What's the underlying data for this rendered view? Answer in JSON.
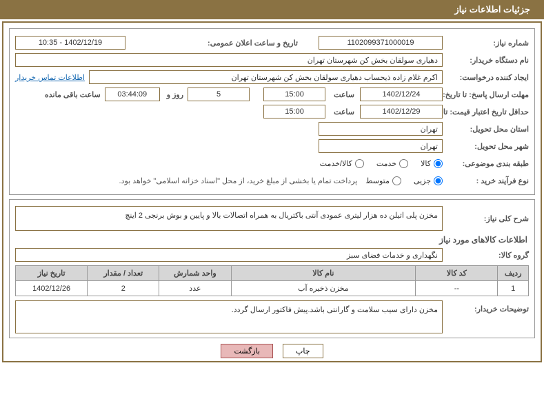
{
  "header": {
    "title": "جزئیات اطلاعات نیاز"
  },
  "form": {
    "need_no_label": "شماره نیاز:",
    "need_no": "1102099371000019",
    "announce_label": "تاریخ و ساعت اعلان عمومی:",
    "announce_value": "1402/12/19 - 10:35",
    "buyer_org_label": "نام دستگاه خریدار:",
    "buyer_org": "دهیاری سولقان بخش کن شهرستان تهران",
    "requester_label": "ایجاد کننده درخواست:",
    "requester": "اکرم غلام زاده ذیحساب دهیاری سولقان بخش کن شهرستان تهران",
    "buyer_contact_link": "اطلاعات تماس خریدار",
    "reply_deadline_label": "مهلت ارسال پاسخ: تا تاریخ:",
    "reply_date": "1402/12/24",
    "time_label": "ساعت",
    "reply_time": "15:00",
    "days_remain": "5",
    "days_word": "روز و",
    "hours_remain": "03:44:09",
    "remain_suffix": "ساعت باقی مانده",
    "min_valid_label": "حداقل تاریخ اعتبار قیمت: تا تاریخ:",
    "min_valid_date": "1402/12/29",
    "min_valid_time": "15:00",
    "deliv_prov_label": "استان محل تحویل:",
    "deliv_prov": "تهران",
    "deliv_city_label": "شهر محل تحویل:",
    "deliv_city": "تهران",
    "subject_class_label": "طبقه بندی موضوعی:",
    "subject_opts": {
      "goods": "کالا",
      "service": "خدمت",
      "both": "کالا/خدمت"
    },
    "process_label": "نوع فرآیند خرید :",
    "process_opts": {
      "small": "جزیی",
      "medium": "متوسط"
    },
    "payment_note": "پرداخت تمام یا بخشی از مبلغ خرید، از محل \"اسناد خزانه اسلامی\" خواهد بود."
  },
  "need_summary": {
    "label": "شرح کلی نیاز:",
    "text": "مخزن پلی اتیلن ده هزار لیتری عمودی آنتی باکتریال به همراه اتصالات بالا و پایین و بوش برنجی 2 اینچ"
  },
  "goods_section": {
    "title": "اطلاعات کالاهای مورد نیاز",
    "group_label": "گروه کالا:",
    "group_value": "نگهداری و خدمات فضای سبز"
  },
  "table": {
    "columns": [
      "ردیف",
      "کد کالا",
      "نام کالا",
      "واحد شمارش",
      "تعداد / مقدار",
      "تاریخ نیاز"
    ],
    "rows": [
      [
        "1",
        "--",
        "مخزن ذخیره آب",
        "عدد",
        "2",
        "1402/12/26"
      ]
    ],
    "col_widths": [
      "6%",
      "16%",
      "36%",
      "14%",
      "14%",
      "14%"
    ]
  },
  "buyer_notes": {
    "label": "توضیحات خریدار:",
    "text": "مخزن دارای سیب سلامت و گارانتی باشد.پیش فاکتور ارسال گردد."
  },
  "buttons": {
    "print": "چاپ",
    "back": "بازگشت"
  },
  "colors": {
    "header_bg": "#8a7243",
    "border": "#8a7243",
    "link": "#1a6bb3",
    "th_bg": "#d6d6d6",
    "return_bg": "#e8b8b8"
  }
}
